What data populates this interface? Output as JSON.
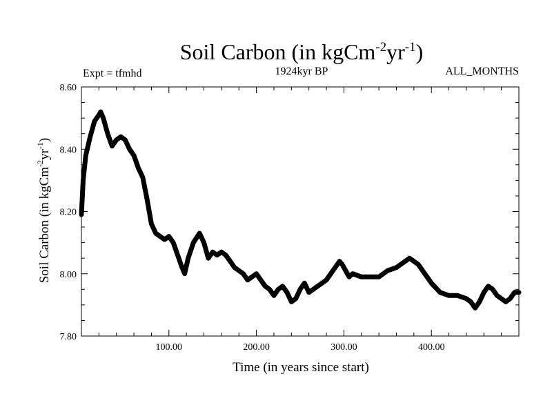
{
  "chart_data": {
    "type": "line",
    "title": {
      "main": "Soil Carbon (in kgCm",
      "sup1": "-2",
      "mid": "yr",
      "sup2": "-1",
      "end": ")"
    },
    "subtitle_left": "Expt = tfmhd",
    "subtitle_center": "1924kyr BP",
    "subtitle_right": "ALL_MONTHS",
    "xlabel": "Time (in years since start)",
    "ylabel": {
      "main": "Soil Carbon (in kgCm",
      "sup1": "-2",
      "mid": "yr",
      "sup2": "-1",
      "end": ")"
    },
    "xlim": [
      0,
      500
    ],
    "ylim": [
      7.8,
      8.6
    ],
    "x_ticks": [
      100,
      200,
      300,
      400
    ],
    "x_tick_labels": [
      "100.00",
      "200.00",
      "300.00",
      "400.00"
    ],
    "y_ticks": [
      7.8,
      8.0,
      8.2,
      8.4,
      8.6
    ],
    "y_tick_labels": [
      "7.80",
      "8.00",
      "8.20",
      "8.40",
      "8.60"
    ],
    "grid": false,
    "series": [
      {
        "name": "Soil Carbon",
        "x": [
          0,
          2,
          5,
          10,
          15,
          20,
          22,
          25,
          30,
          35,
          40,
          45,
          50,
          55,
          60,
          65,
          70,
          75,
          80,
          85,
          90,
          95,
          100,
          105,
          110,
          115,
          118,
          122,
          128,
          135,
          140,
          145,
          150,
          155,
          160,
          165,
          170,
          175,
          180,
          185,
          190,
          195,
          200,
          205,
          210,
          215,
          220,
          225,
          230,
          235,
          240,
          245,
          250,
          255,
          260,
          265,
          270,
          275,
          280,
          285,
          290,
          295,
          298,
          302,
          306,
          310,
          320,
          330,
          340,
          350,
          360,
          370,
          375,
          380,
          385,
          390,
          395,
          400,
          410,
          420,
          430,
          440,
          445,
          450,
          455,
          460,
          465,
          470,
          475,
          480,
          485,
          490,
          495,
          500
        ],
        "y": [
          8.19,
          8.3,
          8.38,
          8.44,
          8.49,
          8.51,
          8.52,
          8.5,
          8.45,
          8.41,
          8.43,
          8.44,
          8.43,
          8.4,
          8.38,
          8.34,
          8.31,
          8.24,
          8.16,
          8.13,
          8.12,
          8.11,
          8.12,
          8.1,
          8.06,
          8.02,
          8.0,
          8.05,
          8.1,
          8.13,
          8.1,
          8.05,
          8.07,
          8.06,
          8.07,
          8.06,
          8.04,
          8.02,
          8.01,
          8.0,
          7.98,
          7.99,
          8.0,
          7.98,
          7.96,
          7.95,
          7.93,
          7.95,
          7.96,
          7.94,
          7.91,
          7.92,
          7.95,
          7.97,
          7.94,
          7.95,
          7.96,
          7.97,
          7.98,
          8.0,
          8.02,
          8.04,
          8.03,
          8.01,
          7.99,
          8.0,
          7.99,
          7.99,
          7.99,
          8.01,
          8.02,
          8.04,
          8.05,
          8.04,
          8.03,
          8.01,
          7.99,
          7.97,
          7.94,
          7.93,
          7.93,
          7.92,
          7.91,
          7.89,
          7.91,
          7.94,
          7.96,
          7.95,
          7.93,
          7.92,
          7.91,
          7.92,
          7.94,
          7.94
        ]
      }
    ]
  }
}
